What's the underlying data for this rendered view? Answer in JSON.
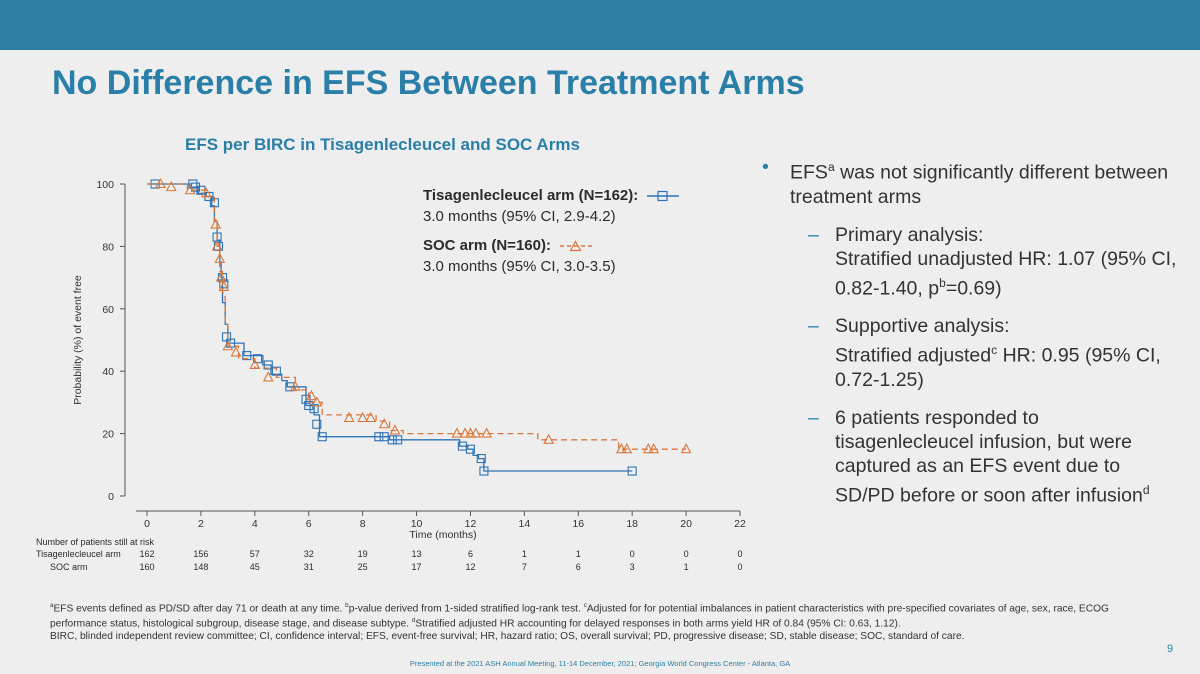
{
  "slide": {
    "title": "No Difference in EFS Between Treatment Arms",
    "page_number": "9",
    "presented": "Presented at the 2021 ASH Annual Meeting, 11-14 December, 2021; Georgia World Congress Center - Atlanta, GA"
  },
  "colors": {
    "accent": "#2a7fa8",
    "tisa": "#2e74b5",
    "soc": "#d9773b",
    "topbar": "#2f7fa5"
  },
  "legend": {
    "tisa_label": "Tisagenlecleucel arm (N=162):",
    "tisa_detail": "3.0 months (95% CI, 2.9-4.2)",
    "soc_label": "SOC arm (N=160):",
    "soc_detail": "3.0 months (95% CI, 3.0-3.5)"
  },
  "risk_table": {
    "header": "Number of patients still at risk",
    "rows": [
      {
        "label": "Tisagenlecleucel arm",
        "values": [
          "162",
          "156",
          "57",
          "32",
          "19",
          "13",
          "6",
          "1",
          "1",
          "0",
          "0",
          "0"
        ]
      },
      {
        "label": "SOC arm",
        "values": [
          "160",
          "148",
          "45",
          "31",
          "25",
          "17",
          "12",
          "7",
          "6",
          "3",
          "1",
          "0"
        ]
      }
    ]
  },
  "bullets": {
    "main_pre": "EFS",
    "main_sup": "a",
    "main_post": " was not significantly different between treatment arms",
    "sub1_a": "Primary analysis:",
    "sub1_b": "Stratified unadjusted HR: 1.07 (95% CI, 0.82-1.40, p",
    "sub1_sup": "b",
    "sub1_c": "=0.69)",
    "sub2_a": "Supportive analysis:",
    "sub2_b": "Stratified adjusted",
    "sub2_sup": "c",
    "sub2_c": " HR: 0.95 (95% CI, 0.72-1.25)",
    "sub3": "6 patients responded to tisagenlecleucel infusion, but were captured as an EFS event due to SD/PD before or soon after infusion",
    "sub3_sup": "d"
  },
  "footnotes": {
    "a_sup": "a",
    "a_text": "EFS events defined as PD/SD after day 71 or death at any time.",
    "b_sup": "b",
    "b_text": "p-value derived from 1-sided stratified log-rank test.",
    "c_sup": "c",
    "c_text": "Adjusted for for potential imbalances in patient characteristics with pre-specified covariates of age, sex, race, ECOG performance status, histological subgroup, disease stage, and disease subtype.",
    "d_sup": "d",
    "d_text": "Stratified adjusted HR accounting for delayed responses in both arms yield HR of 0.84 (95% CI: 0.63, 1.12).",
    "abbrev": "BIRC, blinded independent review committee; CI, confidence interval; EFS, event-free survival; HR, hazard ratio; OS, overall survival; PD, progressive disease; SD, stable disease; SOC, standard of care."
  },
  "chart_data": {
    "type": "line",
    "title": "EFS per BIRC in Tisagenlecleucel and SOC Arms",
    "xlabel": "Time (months)",
    "ylabel": "Probability (%) of event free",
    "xlim": [
      0,
      22
    ],
    "ylim": [
      0,
      100
    ],
    "xticks": [
      0,
      2,
      4,
      6,
      8,
      10,
      12,
      14,
      16,
      18,
      20,
      22
    ],
    "yticks": [
      0,
      20,
      40,
      60,
      80,
      100
    ],
    "series": [
      {
        "name": "Tisagenlecleucel arm (N=162)",
        "step": [
          [
            0,
            100
          ],
          [
            1.6,
            100
          ],
          [
            1.6,
            99
          ],
          [
            1.9,
            99
          ],
          [
            1.9,
            97
          ],
          [
            2.2,
            97
          ],
          [
            2.2,
            96
          ],
          [
            2.4,
            96
          ],
          [
            2.4,
            93
          ],
          [
            2.5,
            93
          ],
          [
            2.5,
            88
          ],
          [
            2.6,
            88
          ],
          [
            2.6,
            82
          ],
          [
            2.7,
            82
          ],
          [
            2.7,
            75
          ],
          [
            2.75,
            75
          ],
          [
            2.75,
            70
          ],
          [
            2.8,
            70
          ],
          [
            2.8,
            62
          ],
          [
            2.9,
            62
          ],
          [
            2.9,
            55
          ],
          [
            3.0,
            55
          ],
          [
            3.0,
            49
          ],
          [
            3.6,
            49
          ],
          [
            3.6,
            45
          ],
          [
            4.3,
            45
          ],
          [
            4.3,
            42
          ],
          [
            4.6,
            42
          ],
          [
            4.6,
            39
          ],
          [
            5.0,
            39
          ],
          [
            5.0,
            37
          ],
          [
            5.2,
            37
          ],
          [
            5.2,
            35
          ],
          [
            5.9,
            35
          ],
          [
            5.9,
            29
          ],
          [
            6.2,
            29
          ],
          [
            6.2,
            26
          ],
          [
            6.4,
            26
          ],
          [
            6.4,
            19
          ],
          [
            9.0,
            19
          ],
          [
            9.0,
            18
          ],
          [
            11.6,
            18
          ],
          [
            11.6,
            16
          ],
          [
            11.9,
            16
          ],
          [
            11.9,
            15
          ],
          [
            12.1,
            15
          ],
          [
            12.1,
            13
          ],
          [
            12.3,
            13
          ],
          [
            12.3,
            12
          ],
          [
            12.5,
            12
          ],
          [
            12.5,
            8
          ],
          [
            18.0,
            8
          ]
        ],
        "markers": [
          [
            0.3,
            100
          ],
          [
            1.7,
            100
          ],
          [
            1.8,
            99
          ],
          [
            2.0,
            98
          ],
          [
            2.3,
            96
          ],
          [
            2.5,
            94
          ],
          [
            2.6,
            83
          ],
          [
            2.65,
            80
          ],
          [
            2.8,
            70
          ],
          [
            2.85,
            68
          ],
          [
            2.95,
            51
          ],
          [
            3.1,
            49
          ],
          [
            3.7,
            45
          ],
          [
            4.1,
            44
          ],
          [
            4.5,
            42
          ],
          [
            4.8,
            40
          ],
          [
            5.3,
            35
          ],
          [
            5.9,
            31
          ],
          [
            6.0,
            29
          ],
          [
            6.2,
            28
          ],
          [
            6.3,
            23
          ],
          [
            6.5,
            19
          ],
          [
            8.6,
            19
          ],
          [
            8.8,
            19
          ],
          [
            9.1,
            18
          ],
          [
            9.3,
            18
          ],
          [
            11.7,
            16
          ],
          [
            12.0,
            15
          ],
          [
            12.4,
            12
          ],
          [
            12.5,
            8
          ],
          [
            18.0,
            8
          ]
        ]
      },
      {
        "name": "SOC arm (N=160)",
        "step": [
          [
            0,
            100
          ],
          [
            1.5,
            100
          ],
          [
            1.5,
            98
          ],
          [
            2.2,
            98
          ],
          [
            2.2,
            96
          ],
          [
            2.5,
            96
          ],
          [
            2.5,
            88
          ],
          [
            2.6,
            88
          ],
          [
            2.6,
            80
          ],
          [
            2.7,
            80
          ],
          [
            2.7,
            72
          ],
          [
            2.8,
            72
          ],
          [
            2.8,
            65
          ],
          [
            2.9,
            65
          ],
          [
            2.9,
            55
          ],
          [
            3.0,
            55
          ],
          [
            3.0,
            48
          ],
          [
            3.4,
            48
          ],
          [
            3.4,
            44
          ],
          [
            4.0,
            44
          ],
          [
            4.0,
            41
          ],
          [
            4.8,
            41
          ],
          [
            4.8,
            38
          ],
          [
            5.5,
            38
          ],
          [
            5.5,
            34
          ],
          [
            6.0,
            34
          ],
          [
            6.0,
            30
          ],
          [
            6.5,
            30
          ],
          [
            6.5,
            26
          ],
          [
            8.5,
            26
          ],
          [
            8.5,
            24
          ],
          [
            9.0,
            24
          ],
          [
            9.0,
            21
          ],
          [
            9.5,
            21
          ],
          [
            9.5,
            20
          ],
          [
            14.5,
            20
          ],
          [
            14.5,
            18
          ],
          [
            17.5,
            18
          ],
          [
            17.5,
            15
          ],
          [
            20.0,
            15
          ]
        ],
        "markers": [
          [
            0.5,
            100
          ],
          [
            0.9,
            99
          ],
          [
            1.6,
            98
          ],
          [
            2.2,
            97
          ],
          [
            2.55,
            87
          ],
          [
            2.6,
            80
          ],
          [
            2.7,
            76
          ],
          [
            2.75,
            70
          ],
          [
            2.85,
            67
          ],
          [
            3.0,
            48
          ],
          [
            3.3,
            46
          ],
          [
            4.0,
            42
          ],
          [
            4.5,
            38
          ],
          [
            5.5,
            35
          ],
          [
            6.1,
            32
          ],
          [
            6.3,
            30
          ],
          [
            7.5,
            25
          ],
          [
            8.0,
            25
          ],
          [
            8.3,
            25
          ],
          [
            8.8,
            23
          ],
          [
            9.2,
            21
          ],
          [
            11.5,
            20
          ],
          [
            11.8,
            20
          ],
          [
            12.0,
            20
          ],
          [
            12.2,
            20
          ],
          [
            12.6,
            20
          ],
          [
            14.9,
            18
          ],
          [
            17.6,
            15
          ],
          [
            17.8,
            15
          ],
          [
            18.6,
            15
          ],
          [
            18.8,
            15
          ],
          [
            20.0,
            15
          ]
        ]
      }
    ]
  }
}
